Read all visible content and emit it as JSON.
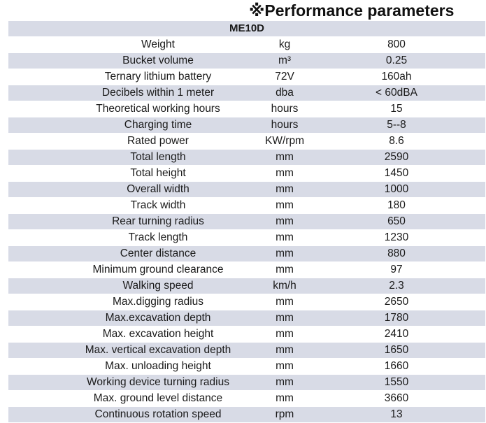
{
  "title": "※Performance parameters",
  "model": "ME10D",
  "rows": [
    {
      "name": "Weight",
      "unit": "kg",
      "value": "800"
    },
    {
      "name": "Bucket volume",
      "unit": "m³",
      "value": "0.25"
    },
    {
      "name": "Ternary lithium battery",
      "unit": "72V",
      "value": "160ah"
    },
    {
      "name": "Decibels within 1 meter",
      "unit": "dba",
      "value": "< 60dBA"
    },
    {
      "name": "Theoretical working hours",
      "unit": "hours",
      "value": "15"
    },
    {
      "name": "Charging time",
      "unit": "hours",
      "value": "5--8"
    },
    {
      "name": "Rated power",
      "unit": "KW/rpm",
      "value": "8.6"
    },
    {
      "name": "Total length",
      "unit": "mm",
      "value": "2590"
    },
    {
      "name": "Total height",
      "unit": "mm",
      "value": "1450"
    },
    {
      "name": "Overall width",
      "unit": "mm",
      "value": "1000"
    },
    {
      "name": "Track width",
      "unit": "mm",
      "value": "180"
    },
    {
      "name": "Rear turning radius",
      "unit": "mm",
      "value": "650"
    },
    {
      "name": "Track length",
      "unit": "mm",
      "value": "1230"
    },
    {
      "name": "Center distance",
      "unit": "mm",
      "value": "880"
    },
    {
      "name": "Minimum ground clearance",
      "unit": "mm",
      "value": "97"
    },
    {
      "name": "Walking speed",
      "unit": "km/h",
      "value": "2.3"
    },
    {
      "name": "Max.digging radius",
      "unit": "mm",
      "value": "2650"
    },
    {
      "name": "Max.excavation depth",
      "unit": "mm",
      "value": "1780"
    },
    {
      "name": "Max. excavation height",
      "unit": "mm",
      "value": "2410"
    },
    {
      "name": "Max. vertical excavation depth",
      "unit": "mm",
      "value": "1650"
    },
    {
      "name": "Max. unloading height",
      "unit": "mm",
      "value": "1660"
    },
    {
      "name": "Working device turning radius",
      "unit": "mm",
      "value": "1550"
    },
    {
      "name": "Max. ground level distance",
      "unit": "mm",
      "value": "3660"
    },
    {
      "name": "Continuous rotation speed",
      "unit": "rpm",
      "value": "13"
    }
  ],
  "colors": {
    "shaded_row": "#d8dbe6",
    "plain_row": "#ffffff"
  }
}
